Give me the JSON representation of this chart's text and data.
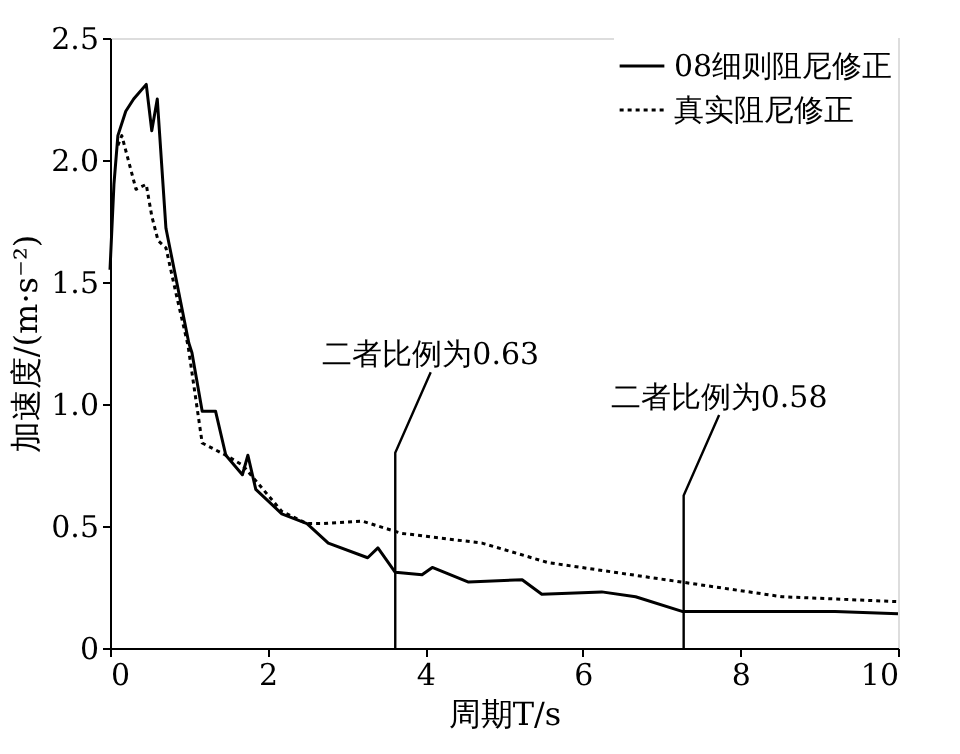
{
  "chart_data": {
    "type": "line",
    "xlabel": "周期T/s",
    "ylabel": "加速度/(m·s⁻²)",
    "xlim": [
      0,
      10
    ],
    "xticks": [
      0,
      2,
      4,
      6,
      8,
      10
    ],
    "ylim": [
      0,
      2.5
    ],
    "yticks": [
      0,
      0.5,
      {
        "value": 1.0,
        "label": "1.0"
      },
      1.5,
      {
        "value": 2.0,
        "label": "2.0"
      },
      2.5
    ],
    "grid": false,
    "legend": "top right",
    "marker": "none",
    "series": [
      {
        "name": "08细则阻尼修正",
        "color": "#000000",
        "line_style": "solid",
        "x": [
          0,
          0.05,
          0.1,
          0.2,
          0.3,
          0.46,
          0.53,
          0.6,
          0.71,
          0.84,
          1.0,
          1.04,
          1.17,
          1.34,
          1.47,
          1.68,
          1.75,
          1.85,
          2.18,
          2.5,
          2.77,
          3.27,
          3.4,
          3.62,
          3.96,
          4.09,
          4.55,
          5.23,
          5.48,
          6.24,
          6.67,
          7.26,
          9.2,
          10
        ],
        "values": [
          1.55,
          1.9,
          2.1,
          2.2,
          2.25,
          2.31,
          2.12,
          2.25,
          1.72,
          1.51,
          1.25,
          1.21,
          0.97,
          0.97,
          0.79,
          0.71,
          0.79,
          0.65,
          0.55,
          0.51,
          0.43,
          0.37,
          0.41,
          0.31,
          0.3,
          0.33,
          0.27,
          0.28,
          0.22,
          0.23,
          0.21,
          0.15,
          0.15,
          0.14
        ]
      },
      {
        "name": "真实阻尼修正",
        "color": "#000000",
        "line_style": "dotted",
        "x": [
          0.1,
          0.15,
          0.33,
          0.46,
          0.53,
          0.61,
          0.71,
          0.84,
          0.99,
          1.17,
          1.47,
          1.68,
          2.18,
          2.5,
          2.69,
          3.2,
          3.7,
          4.72,
          5.56,
          7.26,
          8.53,
          10
        ],
        "values": [
          2.06,
          2.1,
          1.88,
          1.9,
          1.77,
          1.67,
          1.64,
          1.45,
          1.24,
          0.84,
          0.79,
          0.75,
          0.56,
          0.51,
          0.51,
          0.52,
          0.47,
          0.43,
          0.35,
          0.27,
          0.21,
          0.19
        ]
      }
    ],
    "ref_lines": [
      {
        "axis": "x",
        "value": 3.62,
        "label": "二者比例为0.63",
        "color": "#000000"
      },
      {
        "axis": "x",
        "value": 7.28,
        "label": "二者比例为0.58",
        "color": "#000000"
      }
    ]
  }
}
